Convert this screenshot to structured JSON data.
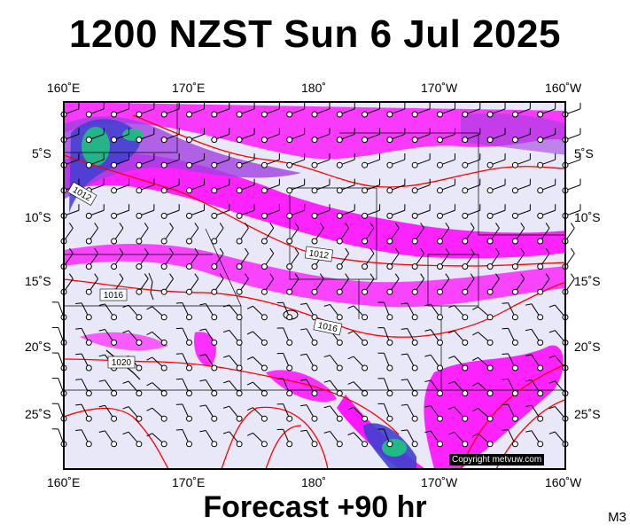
{
  "title": "1200 NZST Sun 6 Jul 2025",
  "forecast_label": "Forecast +90 hr",
  "model_label": "M3",
  "copyright": "Copyright metvuw.com",
  "lon_labels": [
    "160˚E",
    "170˚E",
    "180˚",
    "170˚W",
    "160˚W"
  ],
  "lat_labels": [
    "5˚S",
    "10˚S",
    "15˚S",
    "20˚S",
    "25˚S"
  ],
  "isobar_labels": [
    "1012",
    "1012",
    "1016",
    "1016",
    "1020"
  ],
  "colors": {
    "background": "#e8e8f8",
    "rain_magenta": "#ff00ff",
    "rain_purple": "#a040e0",
    "rain_blue": "#4040d0",
    "rain_green": "#20c080",
    "isobar": "#ff0000"
  }
}
